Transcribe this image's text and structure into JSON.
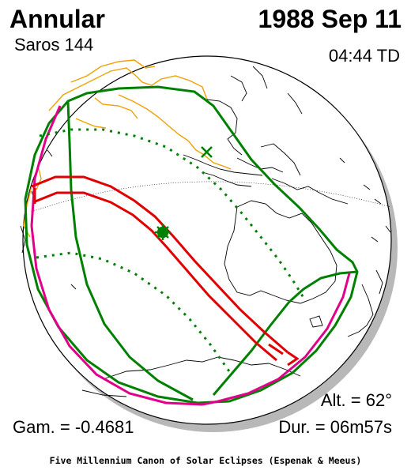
{
  "header": {
    "eclipse_type": "Annular",
    "date": "1988 Sep 11",
    "saros": "Saros 144",
    "time": "04:44 TD"
  },
  "stats": {
    "altitude": "Alt. = 62°",
    "gamma": "Gam. = -0.4681",
    "duration": "Dur. = 06m57s"
  },
  "footer": {
    "credit": "Five Millennium Canon of Solar Eclipses (Espenak & Meeus)"
  },
  "colors": {
    "globe_outline": "#000000",
    "globe_shadow": "#b0b0b0",
    "coastline": "#000000",
    "asia_coast": "#f0a000",
    "penumbra_limit": "#008000",
    "rise_set_limit": "#e0008a",
    "central_path": "#e00000",
    "greatest_eclipse_marker": "#008000",
    "subsolar_marker": "#008000"
  },
  "map": {
    "projection": "orthographic",
    "markers": [
      "greatest-eclipse-star",
      "subsolar-point-cross"
    ]
  }
}
